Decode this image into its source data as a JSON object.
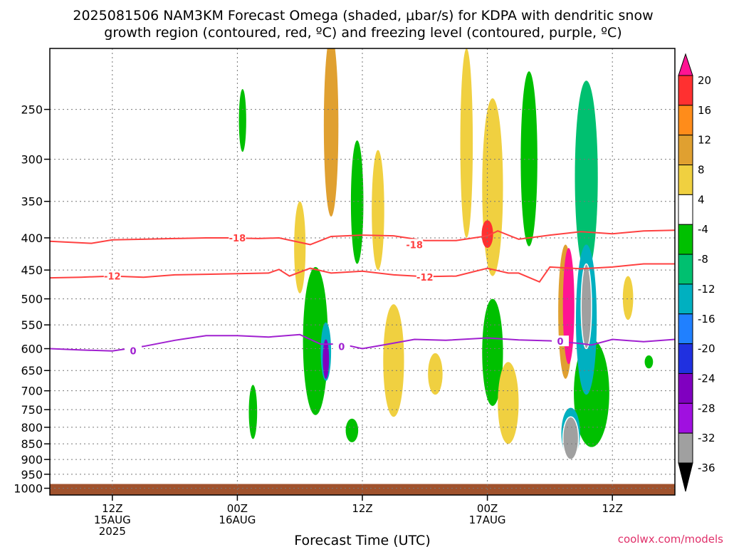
{
  "chart_data": {
    "type": "heatmap",
    "title_line1": "2025081506 NAM3KM Forecast Omega (shaded, μbar/s) for KDPA with dendritic snow",
    "title_line2": "growth region (contoured, red, ºC) and freezing level (contoured, purple, ºC)",
    "xlabel": "Forecast Time (UTC)",
    "ylabel": "",
    "credit": "coolwx.com/models",
    "x_axis": {
      "start_hour": 0,
      "end_hour": 60,
      "ticks": [
        {
          "hour": 6,
          "lines": [
            "12Z",
            "15AUG",
            "2025"
          ]
        },
        {
          "hour": 18,
          "lines": [
            "00Z",
            "16AUG"
          ]
        },
        {
          "hour": 30,
          "lines": [
            "12Z"
          ]
        },
        {
          "hour": 42,
          "lines": [
            "00Z",
            "17AUG"
          ]
        },
        {
          "hour": 54,
          "lines": [
            "12Z"
          ]
        }
      ]
    },
    "y_axis": {
      "scale": "log",
      "ylim": [
        200,
        1025
      ],
      "ticks": [
        250,
        300,
        350,
        400,
        450,
        500,
        550,
        600,
        650,
        700,
        750,
        800,
        850,
        900,
        950,
        1000
      ]
    },
    "grid": true,
    "surface_pressure": 1000,
    "colorbar": {
      "labels": [
        "20",
        "16",
        "12",
        "8",
        "4",
        "-4",
        "-8",
        "-12",
        "-16",
        "-20",
        "-24",
        "-28",
        "-32",
        "-36"
      ],
      "colors": [
        "#ff1493",
        "#ff3030",
        "#ff8c1a",
        "#e0a030",
        "#f0d040",
        "#ffffff",
        "#00c000",
        "#00c070",
        "#00b0c0",
        "#2080ff",
        "#2030e0",
        "#8000c0",
        "#a010e0",
        "#a0a0a0",
        "#000000"
      ]
    },
    "dendritic_contours": [
      {
        "label": "-18",
        "color": "#ff4040",
        "points": [
          [
            0,
            405
          ],
          [
            4,
            408
          ],
          [
            6,
            403
          ],
          [
            9,
            402
          ],
          [
            12,
            401
          ],
          [
            15,
            400
          ],
          [
            17,
            400
          ],
          [
            20,
            401
          ],
          [
            22,
            400
          ],
          [
            25,
            410
          ],
          [
            27,
            398
          ],
          [
            30,
            396
          ],
          [
            33,
            397
          ],
          [
            36,
            404
          ],
          [
            39,
            404
          ],
          [
            42,
            397
          ],
          [
            43,
            390
          ],
          [
            45,
            402
          ],
          [
            48,
            396
          ],
          [
            51,
            391
          ],
          [
            54,
            394
          ],
          [
            57,
            390
          ],
          [
            60,
            389
          ]
        ],
        "label_positions": [
          [
            18,
            400
          ],
          [
            35,
            410
          ]
        ]
      },
      {
        "label": "-12",
        "color": "#ff4040",
        "points": [
          [
            0,
            463
          ],
          [
            3,
            462
          ],
          [
            6,
            460
          ],
          [
            9,
            462
          ],
          [
            12,
            458
          ],
          [
            15,
            457
          ],
          [
            18,
            456
          ],
          [
            21,
            455
          ],
          [
            22,
            449
          ],
          [
            23,
            460
          ],
          [
            25,
            447
          ],
          [
            27,
            455
          ],
          [
            30,
            452
          ],
          [
            33,
            458
          ],
          [
            36,
            461
          ],
          [
            39,
            460
          ],
          [
            42,
            447
          ],
          [
            44,
            455
          ],
          [
            45,
            455
          ],
          [
            47,
            470
          ],
          [
            48,
            445
          ],
          [
            51,
            448
          ],
          [
            54,
            445
          ],
          [
            57,
            440
          ],
          [
            60,
            440
          ]
        ],
        "label_positions": [
          [
            6,
            460
          ],
          [
            36,
            462
          ]
        ]
      }
    ],
    "freezing_level": {
      "label": "0",
      "color": "#a020d0",
      "points": [
        [
          0,
          600
        ],
        [
          3,
          603
        ],
        [
          6,
          605
        ],
        [
          9,
          595
        ],
        [
          12,
          582
        ],
        [
          15,
          572
        ],
        [
          18,
          572
        ],
        [
          21,
          575
        ],
        [
          24,
          570
        ],
        [
          26,
          590
        ],
        [
          28,
          590
        ],
        [
          30,
          600
        ],
        [
          32,
          592
        ],
        [
          35,
          580
        ],
        [
          38,
          582
        ],
        [
          42,
          577
        ],
        [
          45,
          581
        ],
        [
          48,
          583
        ],
        [
          51,
          589
        ],
        [
          52,
          592
        ],
        [
          54,
          580
        ],
        [
          57,
          585
        ],
        [
          60,
          580
        ]
      ],
      "label_positions": [
        [
          8,
          605
        ],
        [
          28,
          595
        ],
        [
          49,
          584
        ]
      ]
    },
    "omega_blobs": [
      {
        "cx": 27,
        "cy": 280,
        "rx": 0.7,
        "ry": 180,
        "value": 8
      },
      {
        "cx": 40,
        "cy": 300,
        "rx": 0.6,
        "ry": 200,
        "value": 4
      },
      {
        "cx": 46,
        "cy": 315,
        "rx": 0.8,
        "ry": 195,
        "value": -8
      },
      {
        "cx": 51.5,
        "cy": 340,
        "rx": 1.1,
        "ry": 230,
        "value": -12
      },
      {
        "cx": 18.5,
        "cy": 262,
        "rx": 0.35,
        "ry": 60,
        "value": -8
      },
      {
        "cx": 24,
        "cy": 420,
        "rx": 0.55,
        "ry": 140,
        "value": 4
      },
      {
        "cx": 31.5,
        "cy": 370,
        "rx": 0.6,
        "ry": 160,
        "value": 4
      },
      {
        "cx": 29.5,
        "cy": 360,
        "rx": 0.6,
        "ry": 160,
        "value": -8
      },
      {
        "cx": 42.5,
        "cy": 350,
        "rx": 1.0,
        "ry": 220,
        "value": 4
      },
      {
        "cx": 42.0,
        "cy": 395,
        "rx": 0.55,
        "ry": 40,
        "value": 16
      },
      {
        "cx": 25.5,
        "cy": 605,
        "rx": 1.2,
        "ry": 320,
        "value": -8
      },
      {
        "cx": 26.5,
        "cy": 610,
        "rx": 0.5,
        "ry": 130,
        "value": -16
      },
      {
        "cx": 26.5,
        "cy": 625,
        "rx": 0.3,
        "ry": 90,
        "value": -28
      },
      {
        "cx": 33.0,
        "cy": 640,
        "rx": 1.0,
        "ry": 260,
        "value": 4
      },
      {
        "cx": 37.0,
        "cy": 660,
        "rx": 0.7,
        "ry": 100,
        "value": 4
      },
      {
        "cx": 42.5,
        "cy": 620,
        "rx": 1.0,
        "ry": 240,
        "value": -8
      },
      {
        "cx": 44.0,
        "cy": 740,
        "rx": 1.0,
        "ry": 220,
        "value": 4
      },
      {
        "cx": 49.5,
        "cy": 540,
        "rx": 0.7,
        "ry": 260,
        "value": 8
      },
      {
        "cx": 52.0,
        "cy": 720,
        "rx": 1.7,
        "ry": 280,
        "value": -8
      },
      {
        "cx": 51.5,
        "cy": 560,
        "rx": 1.0,
        "ry": 300,
        "value": -16
      },
      {
        "cx": 50.0,
        "cy": 820,
        "rx": 0.9,
        "ry": 150,
        "value": -16
      },
      {
        "cx": 49.8,
        "cy": 525,
        "rx": 0.55,
        "ry": 220,
        "value": 20
      },
      {
        "cx": 51.5,
        "cy": 520,
        "rx": 0.5,
        "ry": 160,
        "value": -36
      },
      {
        "cx": 50.0,
        "cy": 835,
        "rx": 0.75,
        "ry": 130,
        "value": -36
      },
      {
        "cx": 29.0,
        "cy": 810,
        "rx": 0.6,
        "ry": 70,
        "value": -8
      },
      {
        "cx": 19.5,
        "cy": 760,
        "rx": 0.4,
        "ry": 150,
        "value": -8
      },
      {
        "cx": 55.5,
        "cy": 500,
        "rx": 0.5,
        "ry": 80,
        "value": 4
      },
      {
        "cx": 57.5,
        "cy": 630,
        "rx": 0.4,
        "ry": 30,
        "value": -8
      }
    ]
  }
}
